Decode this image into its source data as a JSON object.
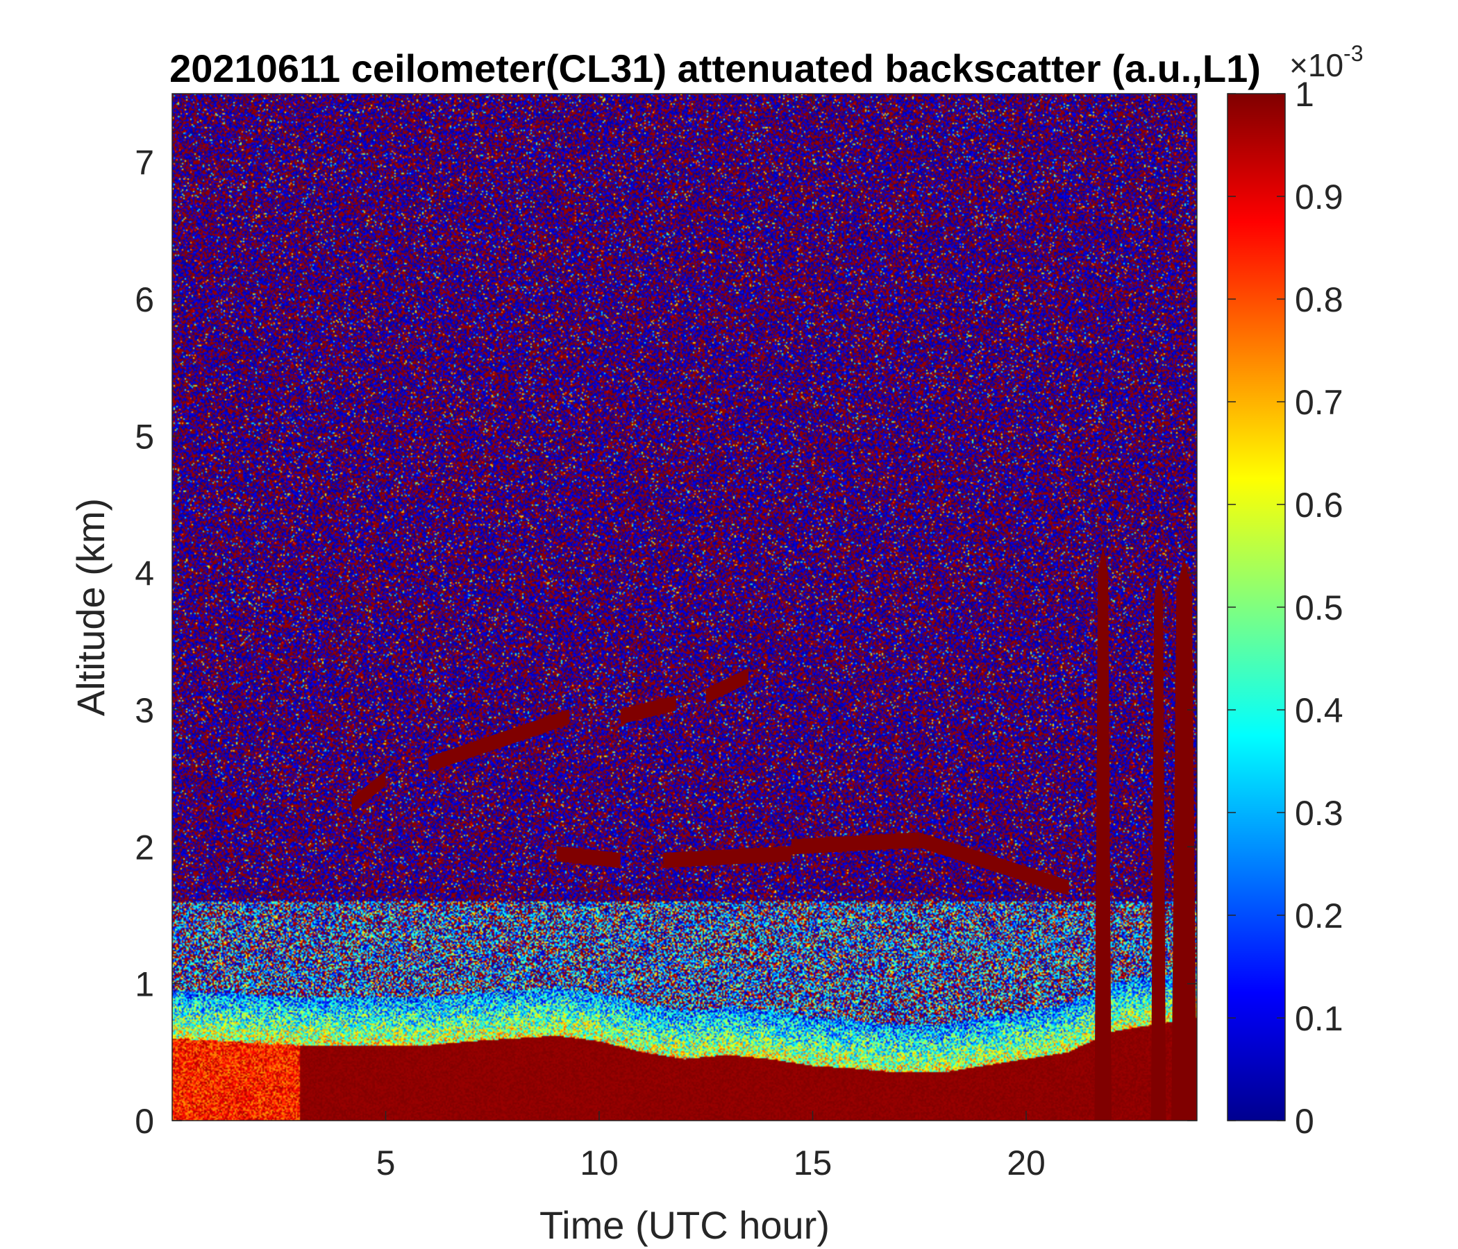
{
  "chart_data": {
    "type": "heatmap",
    "title": "20210611 ceilometer(CL31) attenuated backscatter (a.u.,L1)",
    "xlabel": "Time (UTC hour)",
    "ylabel": "Altitude (km)",
    "xlim": [
      0,
      24
    ],
    "ylim": [
      0,
      7.5
    ],
    "xticks": [
      5,
      10,
      15,
      20
    ],
    "yticks": [
      0,
      1,
      2,
      3,
      4,
      5,
      6,
      7
    ],
    "colorbar": {
      "colormap": "jet",
      "clim": [
        0,
        1
      ],
      "ticks": [
        0,
        0.1,
        0.2,
        0.3,
        0.4,
        0.5,
        0.6,
        0.7,
        0.8,
        0.9,
        1
      ],
      "tick_labels": [
        "0",
        "0.1",
        "0.2",
        "0.3",
        "0.4",
        "0.5",
        "0.6",
        "0.7",
        "0.8",
        "0.9",
        "1"
      ],
      "scale_base": "×10",
      "scale_exponent": "-3",
      "placement": "right"
    },
    "boundary_layer_top_km": [
      [
        0,
        0.6
      ],
      [
        3,
        0.55
      ],
      [
        4,
        0.55
      ],
      [
        6,
        0.55
      ],
      [
        7,
        0.58
      ],
      [
        8,
        0.6
      ],
      [
        9,
        0.62
      ],
      [
        10,
        0.58
      ],
      [
        11,
        0.5
      ],
      [
        12,
        0.45
      ],
      [
        13,
        0.48
      ],
      [
        14,
        0.45
      ],
      [
        15,
        0.4
      ],
      [
        16,
        0.38
      ],
      [
        17,
        0.35
      ],
      [
        18,
        0.35
      ],
      [
        19,
        0.4
      ],
      [
        20,
        0.45
      ],
      [
        21,
        0.5
      ],
      [
        22,
        0.65
      ],
      [
        23,
        0.7
      ],
      [
        24,
        0.75
      ]
    ],
    "cloud_layers": [
      {
        "t_start": 4.2,
        "t_end": 5.0,
        "alt_start_km": 2.3,
        "alt_end_km": 2.5
      },
      {
        "t_start": 6.0,
        "t_end": 9.3,
        "alt_start_km": 2.6,
        "alt_end_km": 2.95
      },
      {
        "t_start": 10.5,
        "t_end": 11.8,
        "alt_start_km": 2.95,
        "alt_end_km": 3.05
      },
      {
        "t_start": 12.5,
        "t_end": 13.5,
        "alt_start_km": 3.1,
        "alt_end_km": 3.25
      },
      {
        "t_start": 9.0,
        "t_end": 10.5,
        "alt_start_km": 1.95,
        "alt_end_km": 1.9
      },
      {
        "t_start": 11.5,
        "t_end": 14.5,
        "alt_start_km": 1.9,
        "alt_end_km": 1.95
      },
      {
        "t_start": 14.5,
        "t_end": 17.5,
        "alt_start_km": 2.0,
        "alt_end_km": 2.05
      },
      {
        "t_start": 17.5,
        "t_end": 21.0,
        "alt_start_km": 2.05,
        "alt_end_km": 1.7
      }
    ],
    "precipitation_columns": [
      {
        "t": 21.8,
        "width_h": 0.4,
        "top_km": 4.2
      },
      {
        "t": 23.1,
        "width_h": 0.35,
        "top_km": 4.0
      },
      {
        "t": 23.7,
        "width_h": 0.6,
        "top_km": 4.1
      }
    ]
  }
}
